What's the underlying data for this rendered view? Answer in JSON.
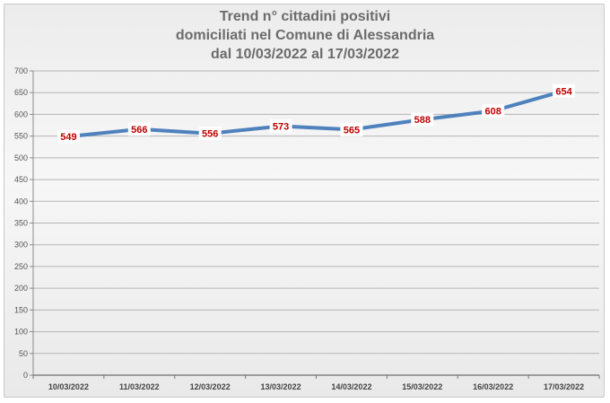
{
  "chart_data": {
    "type": "line",
    "title_lines": [
      "Trend n° cittadini positivi",
      "domiciliati nel Comune di Alessandria",
      "dal 10/03/2022 al 17/03/2022"
    ],
    "categories": [
      "10/03/2022",
      "11/03/2022",
      "12/03/2022",
      "13/03/2022",
      "14/03/2022",
      "15/03/2022",
      "16/03/2022",
      "17/03/2022"
    ],
    "values": [
      549,
      566,
      556,
      573,
      565,
      588,
      608,
      654
    ],
    "ylim": [
      0,
      700
    ],
    "yticks": [
      0,
      50,
      100,
      150,
      200,
      250,
      300,
      350,
      400,
      450,
      500,
      550,
      600,
      650,
      700
    ],
    "grid": true,
    "legend": "none",
    "line_color": "#4f81bd",
    "label_color": "#c00000"
  }
}
